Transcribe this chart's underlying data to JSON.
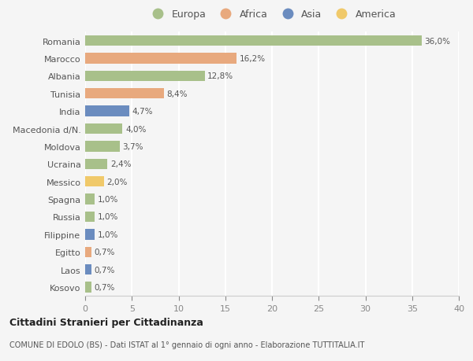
{
  "countries": [
    "Romania",
    "Marocco",
    "Albania",
    "Tunisia",
    "India",
    "Macedonia d/N.",
    "Moldova",
    "Ucraina",
    "Messico",
    "Spagna",
    "Russia",
    "Filippine",
    "Egitto",
    "Laos",
    "Kosovo"
  ],
  "values": [
    36.0,
    16.2,
    12.8,
    8.4,
    4.7,
    4.0,
    3.7,
    2.4,
    2.0,
    1.0,
    1.0,
    1.0,
    0.7,
    0.7,
    0.7
  ],
  "labels": [
    "36,0%",
    "16,2%",
    "12,8%",
    "8,4%",
    "4,7%",
    "4,0%",
    "3,7%",
    "2,4%",
    "2,0%",
    "1,0%",
    "1,0%",
    "1,0%",
    "0,7%",
    "0,7%",
    "0,7%"
  ],
  "continents": [
    "Europa",
    "Africa",
    "Europa",
    "Africa",
    "Asia",
    "Europa",
    "Europa",
    "Europa",
    "America",
    "Europa",
    "Europa",
    "Asia",
    "Africa",
    "Asia",
    "Europa"
  ],
  "colors": {
    "Europa": "#a8c08a",
    "Africa": "#e8a97e",
    "Asia": "#6b8cbf",
    "America": "#f0c96a"
  },
  "legend_order": [
    "Europa",
    "Africa",
    "Asia",
    "America"
  ],
  "bg_color": "#f5f5f5",
  "grid_color": "#ffffff",
  "title1": "Cittadini Stranieri per Cittadinanza",
  "title2": "COMUNE DI EDOLO (BS) - Dati ISTAT al 1° gennaio di ogni anno - Elaborazione TUTTITALIA.IT",
  "xlim": [
    0,
    40
  ],
  "xticks": [
    0,
    5,
    10,
    15,
    20,
    25,
    30,
    35,
    40
  ]
}
